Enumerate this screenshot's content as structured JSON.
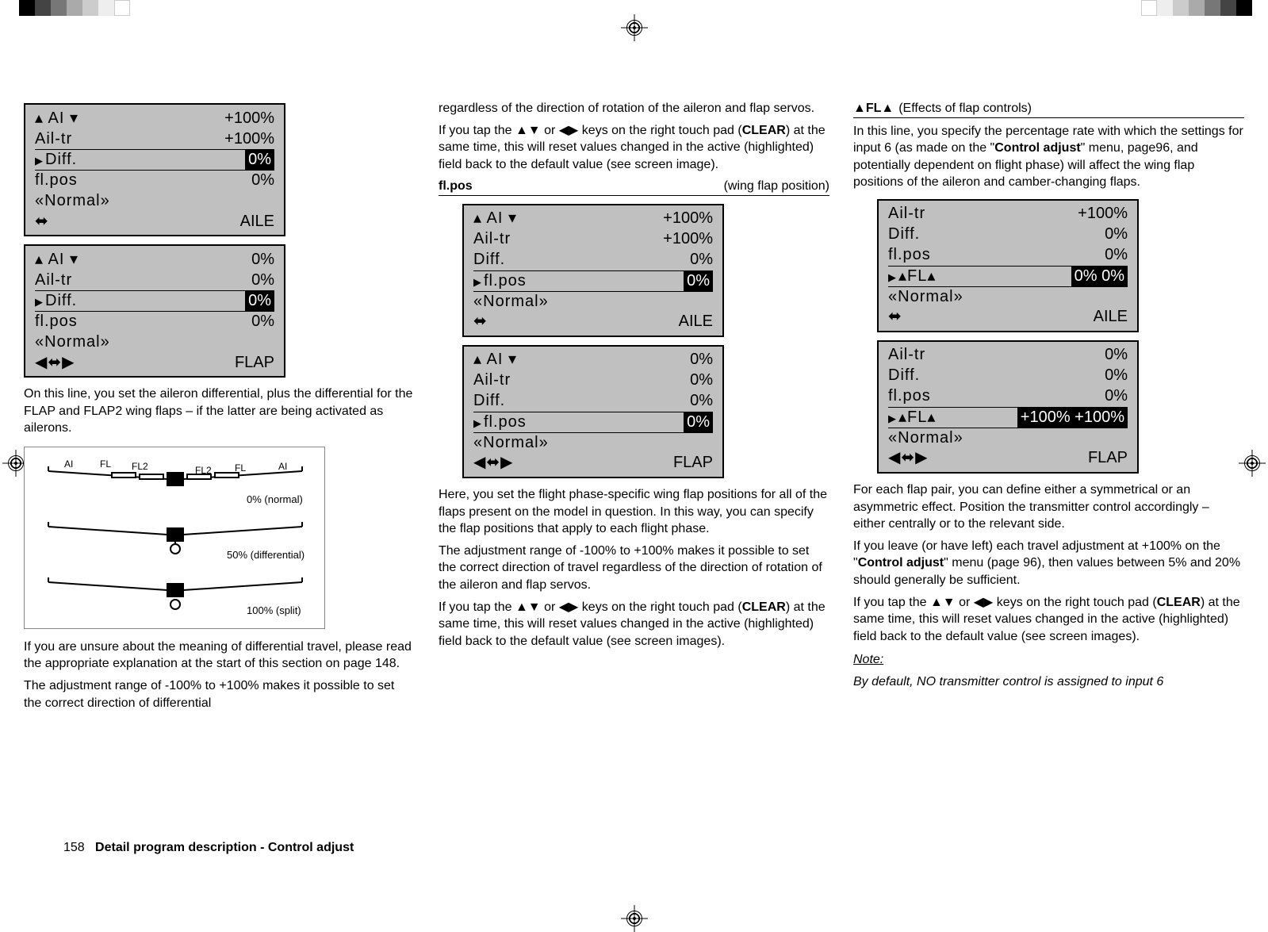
{
  "regmarks": {
    "colors": [
      "#000000",
      "#333333",
      "#666666",
      "#999999",
      "#bbbbbb",
      "#dddddd",
      "#ffffff"
    ]
  },
  "col1": {
    "lcd1": {
      "rows": [
        {
          "label": "▴ AI ▾",
          "val": "+100%",
          "pointer": false,
          "hl": false
        },
        {
          "label": "Ail-tr",
          "val": "+100%",
          "pointer": false,
          "hl": false
        },
        {
          "label": "Diff.",
          "val": "0%",
          "pointer": true,
          "hl": true,
          "sep": true
        },
        {
          "label": "fl.pos",
          "val": "0%",
          "pointer": false,
          "hl": false,
          "sep": true
        },
        {
          "label": "«Normal»",
          "val": "",
          "pointer": false,
          "hl": false
        },
        {
          "label": "⬌",
          "val": "AILE",
          "pointer": false,
          "hl": false
        }
      ]
    },
    "lcd2": {
      "rows": [
        {
          "label": "▴ AI ▾",
          "val": "0%",
          "pointer": false,
          "hl": false
        },
        {
          "label": "Ail-tr",
          "val": "0%",
          "pointer": false,
          "hl": false
        },
        {
          "label": "Diff.",
          "val": "0%",
          "pointer": true,
          "hl": true,
          "sep": true
        },
        {
          "label": "fl.pos",
          "val": "0%",
          "pointer": false,
          "hl": false,
          "sep": true
        },
        {
          "label": "«Normal»",
          "val": "",
          "pointer": false,
          "hl": false
        },
        {
          "label": "◀⬌▶",
          "val": "FLAP",
          "pointer": false,
          "hl": false
        }
      ]
    },
    "p1": "On this line, you set the aileron differential, plus the differential for the FLAP and FLAP2 wing flaps – if the latter are being activated as ailerons.",
    "diagram": {
      "labels": {
        "AI": "AI",
        "FL": "FL",
        "FL2": "FL2"
      },
      "captions": [
        "0% (normal)",
        "50% (differential)",
        "100% (split)"
      ]
    },
    "p2": "If you are unsure about the meaning of differential travel, please read the appropriate explanation at the start of this section on page 148.",
    "p3": "The adjustment range of -100% to +100% makes it possible to set the correct direction of differential"
  },
  "col2": {
    "p1": "regardless of the direction of rotation of the aileron and flap servos.",
    "p2_a": "If you tap the ▲▼ or ◀▶ keys on the right touch pad (",
    "p2_b": "CLEAR",
    "p2_c": ") at the same time, this will reset values changed in the active (highlighted) field back to the default value (see screen image).",
    "sh1": {
      "left": "fl.pos",
      "right": "(wing flap position)"
    },
    "lcd1": {
      "rows": [
        {
          "label": "▴ AI ▾",
          "val": "+100%"
        },
        {
          "label": "Ail-tr",
          "val": "+100%"
        },
        {
          "label": "Diff.",
          "val": "0%"
        },
        {
          "label": "fl.pos",
          "val": "0%",
          "pointer": true,
          "hl": true,
          "sep": true
        },
        {
          "label": "«Normal»",
          "val": "",
          "sep": true
        },
        {
          "label": "⬌",
          "val": "AILE"
        }
      ]
    },
    "lcd2": {
      "rows": [
        {
          "label": "▴ AI ▾",
          "val": "0%"
        },
        {
          "label": "Ail-tr",
          "val": "0%"
        },
        {
          "label": "Diff.",
          "val": "0%"
        },
        {
          "label": "fl.pos",
          "val": "0%",
          "pointer": true,
          "hl": true,
          "sep": true
        },
        {
          "label": "«Normal»",
          "val": "",
          "sep": true
        },
        {
          "label": "◀⬌▶",
          "val": "FLAP"
        }
      ]
    },
    "p3": "Here, you set the flight phase-specific wing flap positions for all of the flaps present on the model in question. In this way, you can specify the flap positions that apply to each flight phase.",
    "p4": "The adjustment range of -100% to +100% makes it possible to set the correct direction of travel regardless of the direction of rotation of the aileron and flap servos.",
    "p5_a": "If you tap the ▲▼ or ◀▶ keys on the right touch pad (",
    "p5_b": "CLEAR",
    "p5_c": ") at the same time, this will reset values changed in the active (highlighted) field back to the default value (see screen images)."
  },
  "col3": {
    "sh1": {
      "left": "▲FL▲",
      "right": "(Effects of flap controls)"
    },
    "p1_a": "In this line, you specify the percentage rate with which the settings for input 6 (as made on the \"",
    "p1_b": "Control adjust",
    "p1_c": "\" menu, page96, and potentially dependent on flight phase) will affect the wing flap positions of the aileron and camber-changing flaps.",
    "lcd1": {
      "rows": [
        {
          "label": "Ail-tr",
          "val": "+100%"
        },
        {
          "label": "Diff.",
          "val": "0%"
        },
        {
          "label": "fl.pos",
          "val": "0%"
        },
        {
          "label": "▴FL▴",
          "val": "0%    0%",
          "pointer": true,
          "hl": true,
          "sep": true
        },
        {
          "label": "«Normal»",
          "val": "",
          "sep": true
        },
        {
          "label": "⬌",
          "val": "AILE"
        }
      ]
    },
    "lcd2": {
      "rows": [
        {
          "label": "Ail-tr",
          "val": "0%"
        },
        {
          "label": "Diff.",
          "val": "0%"
        },
        {
          "label": "fl.pos",
          "val": "0%"
        },
        {
          "label": "▴FL▴",
          "val": "+100% +100%",
          "pointer": true,
          "hl": true,
          "sep": true
        },
        {
          "label": "«Normal»",
          "val": "",
          "sep": true
        },
        {
          "label": "◀⬌▶",
          "val": "FLAP"
        }
      ]
    },
    "p2": "For each flap pair, you can define either a symmetrical or an asymmetric effect. Position the transmitter control accordingly – either centrally or to the relevant side.",
    "p3_a": "If you leave (or have left) each travel adjustment at +100% on the \"",
    "p3_b": "Control adjust",
    "p3_c": "\" menu (page 96), then values between 5% and 20% should generally be sufficient.",
    "p4_a": "If you tap the ▲▼ or ◀▶ keys on the right touch pad (",
    "p4_b": "CLEAR",
    "p4_c": ") at the same time, this will reset values changed in the active (highlighted) field back to the default value (see screen images).",
    "note_label": "Note:",
    "note": "By default, NO transmitter control is assigned to input 6"
  },
  "footer": {
    "page": "158",
    "title": "Detail program description - Control adjust"
  }
}
